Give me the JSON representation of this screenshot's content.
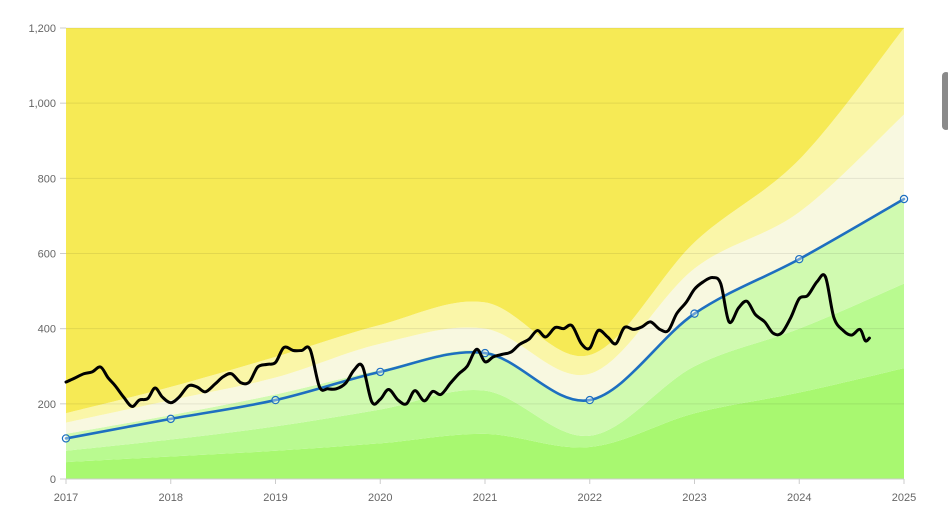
{
  "chart_data": {
    "type": "line",
    "title": "",
    "xlabel": "",
    "ylabel": "",
    "xlim": [
      2017,
      2025
    ],
    "ylim": [
      0,
      1200
    ],
    "x_ticks": [
      "2017",
      "2018",
      "2019",
      "2020",
      "2021",
      "2022",
      "2023",
      "2024",
      "2025"
    ],
    "y_ticks": [
      "0",
      "200",
      "400",
      "600",
      "800",
      "1,000",
      "1,200"
    ],
    "grid": "horizontal",
    "legend": "none",
    "bands": {
      "x": [
        2017,
        2018,
        2019,
        2020,
        2021,
        2022,
        2023,
        2024,
        2025
      ],
      "boundaries": [
        [
          45,
          60,
          75,
          95,
          120,
          85,
          175,
          230,
          295
        ],
        [
          75,
          105,
          140,
          185,
          235,
          115,
          300,
          400,
          520
        ],
        [
          120,
          170,
          225,
          290,
          340,
          210,
          440,
          585,
          745
        ],
        [
          150,
          210,
          270,
          360,
          400,
          280,
          560,
          710,
          970
        ],
        [
          175,
          245,
          325,
          410,
          470,
          330,
          630,
          850,
          1200
        ]
      ],
      "colors": [
        "#a8f870",
        "#b9fa90",
        "#d0fab0",
        "#f8f8e0",
        "#faf6a8",
        "#f6ea55"
      ]
    },
    "series": [
      {
        "color": "#1e6fc0",
        "markers": true,
        "x": [
          2017,
          2018,
          2019,
          2020,
          2021,
          2022,
          2023,
          2024,
          2025
        ],
        "y": [
          108,
          160,
          210,
          285,
          335,
          210,
          440,
          585,
          745
        ]
      },
      {
        "color": "#000000",
        "markers": false,
        "x": [
          2017.0,
          2017.08,
          2017.17,
          2017.25,
          2017.33,
          2017.4,
          2017.47,
          2017.55,
          2017.63,
          2017.7,
          2017.78,
          2017.85,
          2017.92,
          2018.0,
          2018.08,
          2018.17,
          2018.25,
          2018.33,
          2018.42,
          2018.5,
          2018.58,
          2018.67,
          2018.75,
          2018.83,
          2018.92,
          2019.0,
          2019.08,
          2019.17,
          2019.25,
          2019.33,
          2019.42,
          2019.5,
          2019.58,
          2019.67,
          2019.75,
          2019.83,
          2019.92,
          2020.0,
          2020.08,
          2020.17,
          2020.25,
          2020.33,
          2020.42,
          2020.5,
          2020.58,
          2020.67,
          2020.75,
          2020.83,
          2020.92,
          2021.0,
          2021.08,
          2021.17,
          2021.25,
          2021.33,
          2021.42,
          2021.5,
          2021.58,
          2021.67,
          2021.75,
          2021.83,
          2021.92,
          2022.0,
          2022.08,
          2022.17,
          2022.25,
          2022.33,
          2022.42,
          2022.5,
          2022.58,
          2022.67,
          2022.75,
          2022.83,
          2022.92,
          2023.0,
          2023.08,
          2023.17,
          2023.25,
          2023.33,
          2023.42,
          2023.5,
          2023.58,
          2023.67,
          2023.75,
          2023.83,
          2023.92,
          2024.0,
          2024.08,
          2024.17,
          2024.25,
          2024.33,
          2024.42,
          2024.5,
          2024.58,
          2024.63,
          2024.67
        ],
        "y": [
          258,
          268,
          280,
          285,
          298,
          270,
          248,
          218,
          193,
          210,
          214,
          242,
          218,
          203,
          218,
          248,
          245,
          232,
          252,
          272,
          280,
          256,
          258,
          298,
          305,
          310,
          350,
          342,
          342,
          345,
          245,
          240,
          240,
          255,
          290,
          300,
          205,
          212,
          238,
          210,
          200,
          235,
          208,
          233,
          225,
          255,
          280,
          300,
          345,
          312,
          325,
          332,
          338,
          358,
          372,
          395,
          378,
          403,
          400,
          408,
          360,
          348,
          395,
          378,
          360,
          403,
          398,
          405,
          418,
          398,
          395,
          440,
          470,
          505,
          524,
          536,
          520,
          418,
          455,
          473,
          438,
          418,
          388,
          388,
          430,
          480,
          488,
          525,
          538,
          430,
          395,
          383,
          398,
          368,
          375
        ]
      }
    ]
  }
}
